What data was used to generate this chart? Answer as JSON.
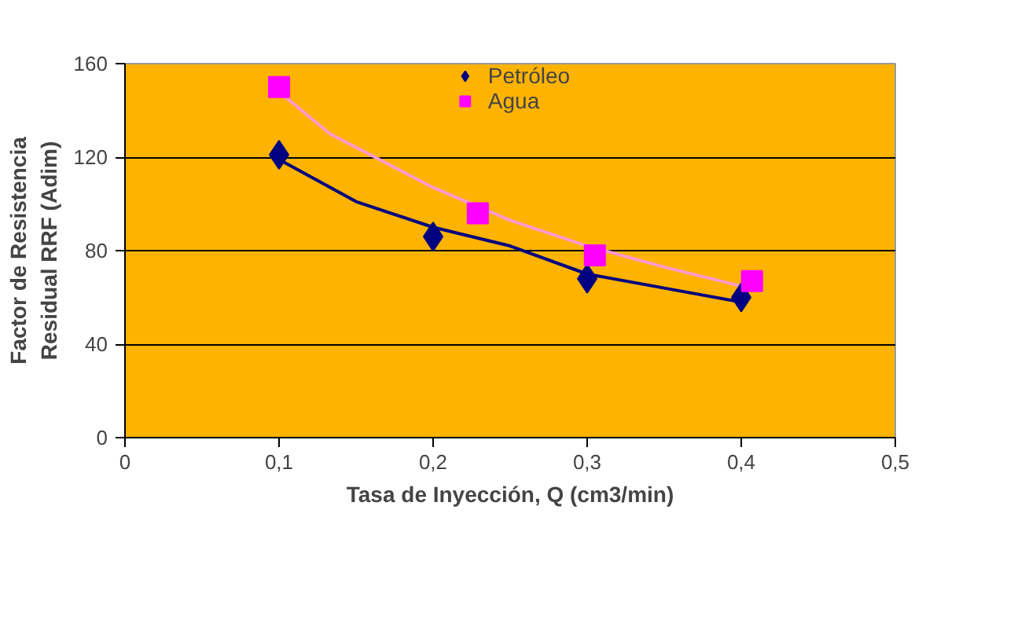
{
  "chart_data": {
    "type": "scatter",
    "xlabel": "Tasa de Inyección, Q (cm3/min)",
    "ylabel": "Factor de Resistencia Residual RRF (Adim)",
    "xlim": [
      0,
      0.5
    ],
    "xticks": [
      {
        "value": 0,
        "label": "0"
      },
      {
        "value": 0.1,
        "label": "0,1"
      },
      {
        "value": 0.2,
        "label": "0,2"
      },
      {
        "value": 0.3,
        "label": "0,3"
      },
      {
        "value": 0.4,
        "label": "0,4"
      },
      {
        "value": 0.5,
        "label": "0,5"
      }
    ],
    "ylim": [
      0,
      160
    ],
    "yticks": [
      0,
      40,
      80,
      120,
      160
    ],
    "grid": "y",
    "legend": "top",
    "series": [
      {
        "type": "line",
        "color": "#000080",
        "x": [
          0.1,
          0.15,
          0.2,
          0.25,
          0.3,
          0.35,
          0.4
        ],
        "values": [
          119,
          101,
          90,
          82,
          70,
          64,
          58
        ],
        "marker": "none"
      },
      {
        "type": "line",
        "color": "#ff99cc",
        "x": [
          0.1,
          0.133,
          0.2,
          0.25,
          0.3,
          0.35,
          0.405
        ],
        "values": [
          148,
          130,
          107,
          93,
          82,
          73,
          64
        ],
        "marker": "none"
      },
      {
        "name": "Petróleo",
        "color": "#000080",
        "marker": "diamond",
        "x": [
          0.1,
          0.2,
          0.3,
          0.4
        ],
        "values": [
          121,
          86,
          68,
          60
        ]
      },
      {
        "name": "Agua",
        "color": "#ff00ff",
        "marker": "square",
        "x": [
          0.1,
          0.229,
          0.305,
          0.407
        ],
        "values": [
          150,
          96,
          78,
          67
        ]
      }
    ]
  }
}
